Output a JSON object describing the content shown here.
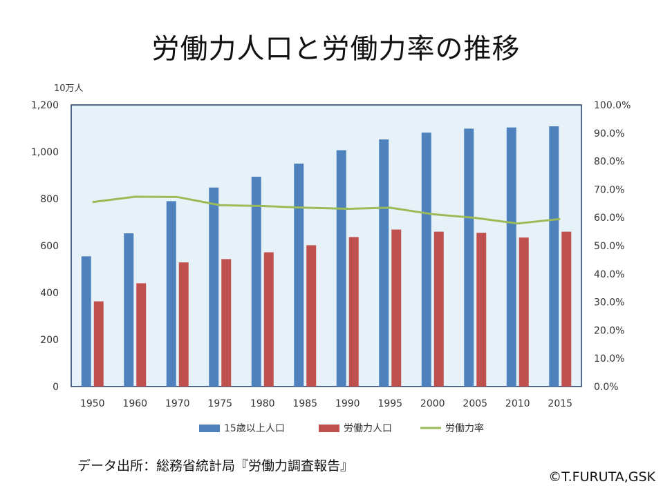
{
  "title": "労働力人口と労働力率の推移",
  "source": "データ出所：総務省統計局『労働力調査報告』",
  "copyright": "©T.FURUTA,GSK",
  "colors": {
    "population": "#4f81bd",
    "labor": "#c0504d",
    "rate": "#9bbb59",
    "plot_bg": "#e6f2f8",
    "plot_border": "#1f3864"
  },
  "chart_data": {
    "type": "bar",
    "categories": [
      "1950",
      "1960",
      "1970",
      "1975",
      "1980",
      "1985",
      "1990",
      "1995",
      "2000",
      "2005",
      "2010",
      "2015"
    ],
    "y_unit": "10万人",
    "ylim": [
      0,
      1200
    ],
    "y_ticks": [
      "0",
      "200",
      "400",
      "600",
      "800",
      "1,000",
      "1,200"
    ],
    "y2lim": [
      0,
      100
    ],
    "y2_ticks": [
      "0.0%",
      "10.0%",
      "20.0%",
      "30.0%",
      "40.0%",
      "50.0%",
      "60.0%",
      "70.0%",
      "80.0%",
      "90.0%",
      "100.0%"
    ],
    "legend_position": "bottom",
    "series": [
      {
        "name": "15歳以上人口",
        "type": "bar",
        "axis": "left",
        "values": [
          555,
          653,
          790,
          848,
          894,
          950,
          1007,
          1053,
          1082,
          1099,
          1104,
          1109
        ]
      },
      {
        "name": "労働力人口",
        "type": "bar",
        "axis": "left",
        "values": [
          363,
          440,
          529,
          543,
          572,
          602,
          637,
          669,
          660,
          655,
          635,
          660
        ]
      },
      {
        "name": "労働力率",
        "type": "line",
        "axis": "right",
        "values": [
          65.5,
          67.4,
          67.3,
          64.4,
          64.1,
          63.5,
          63.1,
          63.5,
          61.2,
          59.9,
          57.9,
          59.5
        ]
      }
    ]
  }
}
